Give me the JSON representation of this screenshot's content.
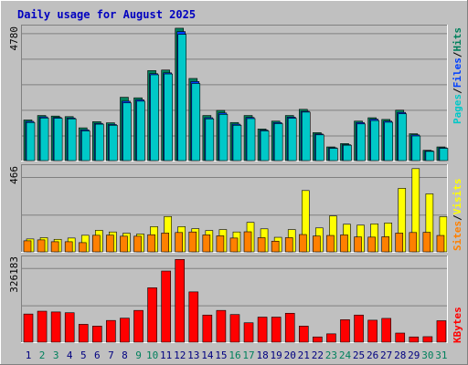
{
  "title": "Daily usage for August 2025",
  "colors": {
    "hits": "#00805c",
    "files": "#0040ff",
    "pages": "#00c8c8",
    "visits": "#ffff00",
    "sites": "#ff8000",
    "kbytes": "#ff0000",
    "weekend_day": "#00805c",
    "weekday": "#000080",
    "title": "#0000c0"
  },
  "legend_top": {
    "pages": "Pages",
    "files": "Files",
    "hits": "Hits",
    "sep": "/"
  },
  "legend_mid": {
    "sites": "Sites",
    "visits": "Visits",
    "sep": "/"
  },
  "legend_bot": {
    "kbytes": "KBytes"
  },
  "chart_data": [
    {
      "type": "bar",
      "title": "Daily usage for August 2025",
      "scale_label": "4780",
      "ylim": [
        0,
        4780
      ],
      "categories": [
        "1",
        "2",
        "3",
        "4",
        "5",
        "6",
        "7",
        "8",
        "9",
        "10",
        "11",
        "12",
        "13",
        "14",
        "15",
        "16",
        "17",
        "18",
        "19",
        "20",
        "21",
        "22",
        "23",
        "24",
        "25",
        "26",
        "27",
        "28",
        "29",
        "30",
        "31"
      ],
      "weekend_days": [
        "2",
        "3",
        "9",
        "10",
        "16",
        "17",
        "23",
        "24",
        "30",
        "31"
      ],
      "series": [
        {
          "name": "Hits",
          "values": [
            1480,
            1640,
            1620,
            1600,
            1200,
            1420,
            1380,
            2290,
            2270,
            3240,
            3260,
            4750,
            2960,
            1640,
            1820,
            1390,
            1640,
            1160,
            1440,
            1640,
            1860,
            1030,
            520,
            640,
            1440,
            1560,
            1500,
            1830,
            990,
            400,
            520
          ]
        },
        {
          "name": "Files",
          "values": [
            1430,
            1590,
            1570,
            1550,
            1130,
            1360,
            1320,
            2150,
            2200,
            3130,
            3160,
            4630,
            2850,
            1560,
            1730,
            1330,
            1570,
            1120,
            1390,
            1580,
            1790,
            980,
            490,
            600,
            1390,
            1510,
            1440,
            1750,
            950,
            380,
            490
          ]
        },
        {
          "name": "Pages",
          "values": [
            1390,
            1550,
            1540,
            1520,
            1090,
            1330,
            1290,
            2090,
            2150,
            3090,
            3120,
            4530,
            2780,
            1520,
            1680,
            1290,
            1530,
            1090,
            1350,
            1540,
            1760,
            950,
            470,
            580,
            1340,
            1460,
            1400,
            1700,
            910,
            360,
            470
          ]
        }
      ]
    },
    {
      "type": "bar",
      "scale_label": "466",
      "ylim": [
        0,
        466
      ],
      "series": [
        {
          "name": "Visits",
          "values": [
            75,
            82,
            73,
            80,
            95,
            122,
            113,
            106,
            102,
            142,
            197,
            142,
            131,
            121,
            126,
            113,
            165,
            130,
            84,
            126,
            338,
            135,
            200,
            155,
            150,
            157,
            162,
            350,
            457,
            320,
            196
          ]
        },
        {
          "name": "Sites",
          "values": [
            65,
            70,
            60,
            60,
            55,
            95,
            96,
            90,
            90,
            98,
            107,
            110,
            113,
            97,
            92,
            80,
            114,
            82,
            63,
            82,
            99,
            91,
            94,
            97,
            86,
            85,
            87,
            107,
            110,
            111,
            94
          ]
        }
      ]
    },
    {
      "type": "bar",
      "scale_label": "326183",
      "ylim": [
        0,
        326183
      ],
      "series": [
        {
          "name": "KBytes",
          "values": [
            113000,
            124000,
            121000,
            118000,
            73000,
            66000,
            88000,
            97000,
            127000,
            215000,
            280000,
            325000,
            199000,
            109000,
            127000,
            111000,
            79000,
            101000,
            101000,
            116000,
            66000,
            24000,
            36000,
            91000,
            109000,
            89000,
            96000,
            39000,
            24000,
            25000,
            87000
          ]
        }
      ]
    }
  ]
}
